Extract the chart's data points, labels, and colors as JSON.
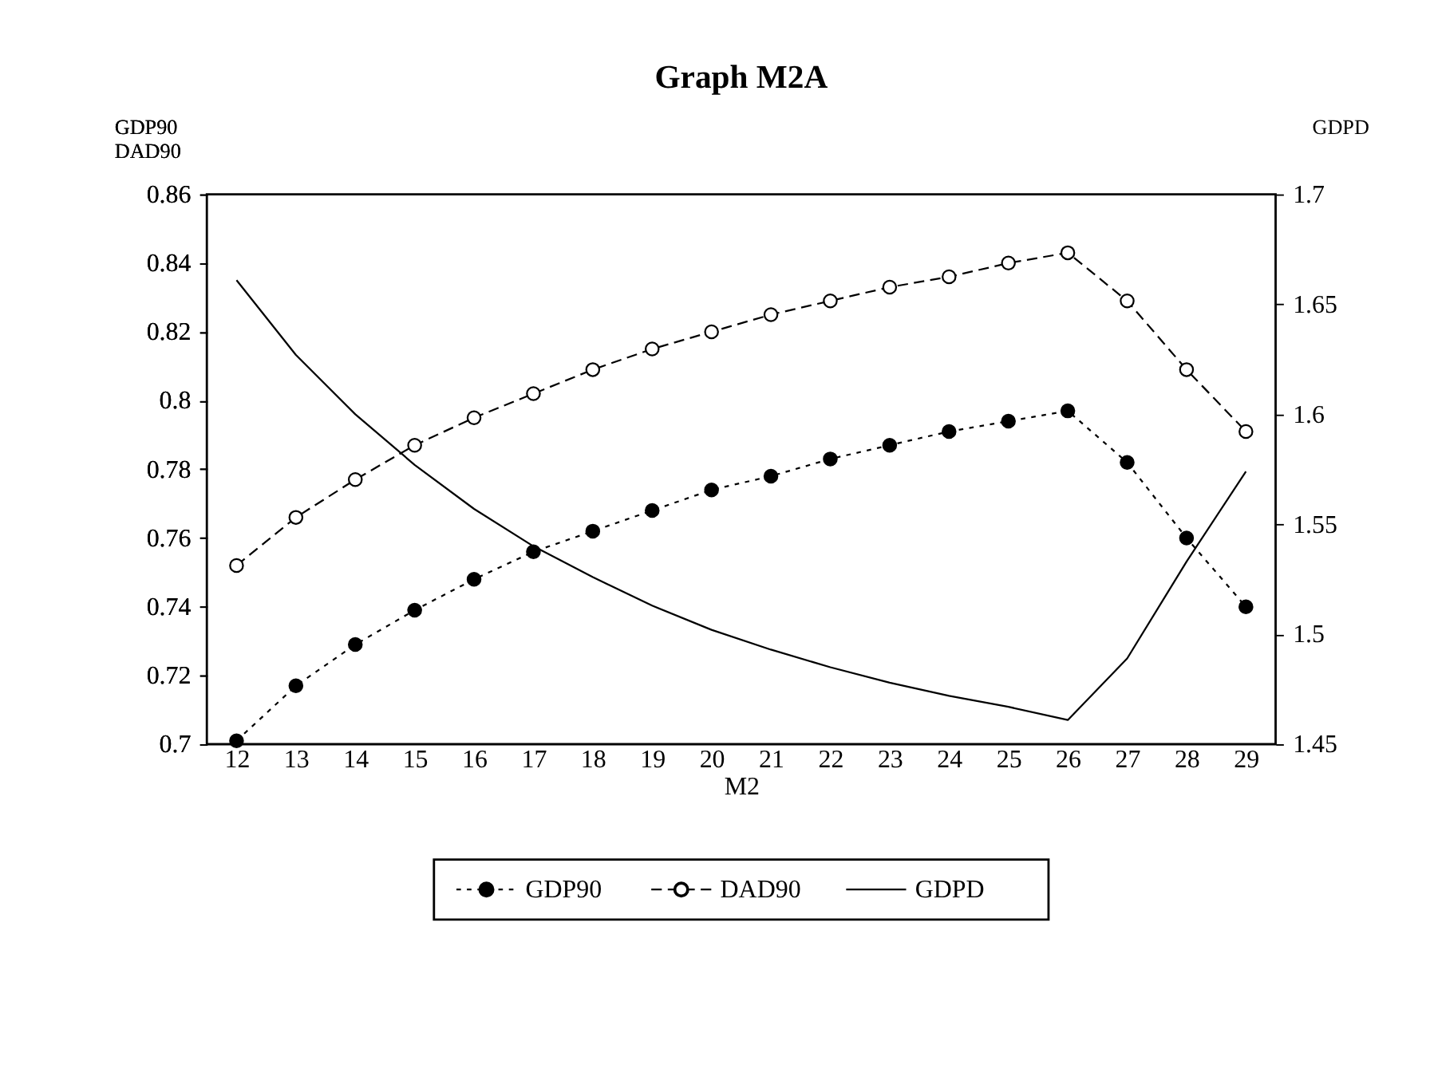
{
  "chart_data": {
    "type": "line",
    "title": "Graph M2A",
    "xlabel": "M2",
    "ylabel": "GDP90\nDAD90",
    "y2label": "GDPD",
    "categories": [
      "12",
      "13",
      "14",
      "15",
      "16",
      "17",
      "18",
      "19",
      "20",
      "21",
      "22",
      "23",
      "24",
      "25",
      "26",
      "27",
      "28",
      "29"
    ],
    "series": [
      {
        "name": "GDP90",
        "color": "#000000",
        "marker": "circle",
        "line_style": "dotted",
        "values": [
          0.701,
          0.717,
          0.729,
          0.739,
          0.748,
          0.756,
          0.762,
          0.768,
          0.774,
          0.778,
          0.783,
          0.787,
          0.791,
          0.794,
          0.797,
          0.782,
          0.76,
          0.74
        ]
      },
      {
        "name": "DAD90",
        "color": "#000000",
        "marker": "circle",
        "line_style": "dashed",
        "colors": [
          "#ffffff",
          "#ffffff",
          "#ffffff",
          "#ffffff",
          "#ffffff",
          "#ffffff",
          "#ffffff",
          "#ffffff",
          "#ffffff",
          "#ffffff",
          "#ffffff",
          "#ffffff",
          "#ffffff",
          "#ffffff",
          "#ffffff",
          "#ffffff",
          "#ffffff",
          "#ffffff"
        ],
        "values": [
          0.752,
          0.766,
          0.777,
          0.787,
          0.795,
          0.802,
          0.809,
          0.815,
          0.82,
          0.825,
          0.829,
          0.833,
          0.836,
          0.84,
          0.843,
          0.829,
          0.809,
          0.791
        ]
      },
      {
        "name": "GDPD",
        "color": "#000000",
        "marker": "none",
        "line_style": "solid",
        "axis": "y2",
        "values": [
          1.661,
          1.627,
          1.6,
          1.577,
          1.557,
          1.54,
          1.526,
          1.513,
          1.502,
          1.493,
          1.485,
          1.478,
          1.472,
          1.467,
          1.461,
          1.489,
          1.533,
          1.574
        ]
      }
    ],
    "ylim": [
      0.7,
      0.86
    ],
    "yticks": [
      0.7,
      0.72,
      0.74,
      0.76,
      0.78,
      0.8,
      0.82,
      0.84,
      0.86
    ],
    "y2lim": [
      1.45,
      1.7
    ],
    "y2ticks": [
      1.45,
      1.5,
      1.55,
      1.6,
      1.65,
      1.7
    ],
    "grid": false,
    "legend": "bottom"
  }
}
